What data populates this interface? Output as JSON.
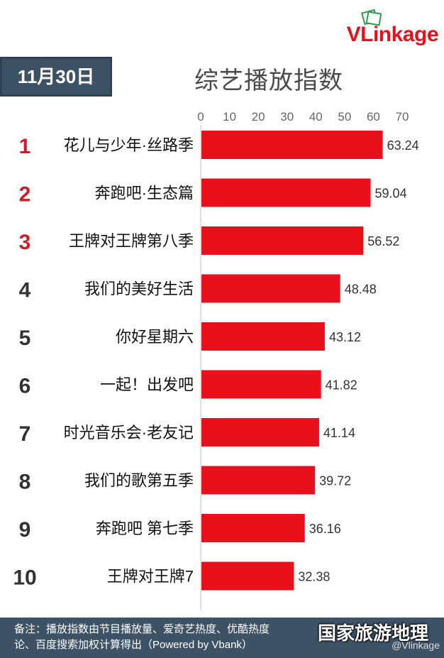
{
  "brand": {
    "logo_text": "VLinkage",
    "accent": "#e8111b"
  },
  "date_label": "11月30日",
  "chart_data": {
    "type": "bar",
    "orientation": "horizontal",
    "title": "综艺播放指数",
    "ranks": [
      "1",
      "2",
      "3",
      "4",
      "5",
      "6",
      "7",
      "8",
      "9",
      "10"
    ],
    "categories": [
      "花儿与少年·丝路季",
      "奔跑吧·生态篇",
      "王牌对王牌第八季",
      "我们的美好生活",
      "你好星期六",
      "一起！出发吧",
      "时光音乐会·老友记",
      "我们的歌第五季",
      "奔跑吧 第七季",
      "王牌对王牌7"
    ],
    "values": [
      63.24,
      59.04,
      56.52,
      48.48,
      43.12,
      41.82,
      41.14,
      39.72,
      36.16,
      32.38
    ],
    "value_labels": [
      "63.24",
      "59.04",
      "56.52",
      "48.48",
      "43.12",
      "41.82",
      "41.14",
      "39.72",
      "36.16",
      "32.38"
    ],
    "xlim": [
      0,
      70
    ],
    "ticks": [
      "0",
      "10",
      "20",
      "30",
      "40",
      "50",
      "60",
      "70"
    ],
    "axis_position": "top",
    "bar_color": "#e8111b",
    "top_rank_color": "#d21c24",
    "rank_color": "#333333",
    "grid": false
  },
  "footer": {
    "line1": "备注：播放指数由节目播放量、爱奇艺热度、优酷热度",
    "line2": "论、百度搜索加权计算得出（Powered by Vbank）"
  },
  "watermark": {
    "text": "国家旅游地理",
    "handle": "@Vlinkage"
  }
}
